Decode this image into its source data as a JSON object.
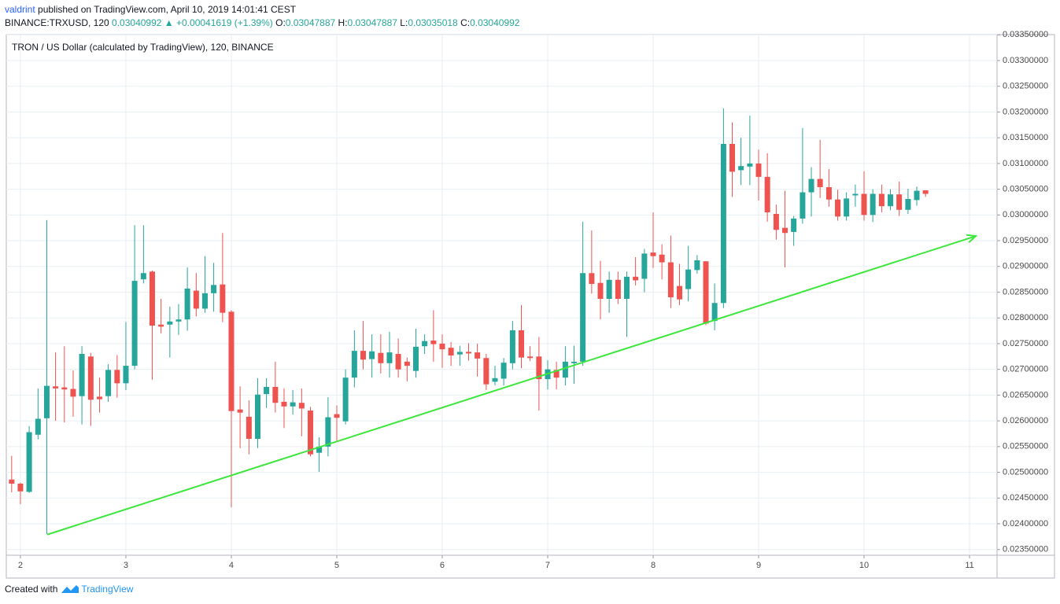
{
  "header": {
    "author": "valdrint",
    "published": "published on TradingView.com, April 10, 2019 14:01:41 CEST",
    "symbol": "BINANCE:TRXUSD, 120",
    "last": "0.03040992",
    "change": "▲ +0.00041619 (+1.39%)",
    "open_label": "O:",
    "open": "0.03047887",
    "high_label": "H:",
    "high": "0.03047887",
    "low_label": "L:",
    "low": "0.03035018",
    "close_label": "C:",
    "close": "0.03040992"
  },
  "footer": {
    "created": "Created with",
    "brand": "TradingView"
  },
  "chart_data": {
    "type": "candlestick",
    "title": "TRON / US Dollar (calculated by TradingView), 120, BINANCE",
    "up_color": "#26a69a",
    "down_color": "#ef5350",
    "grid": true,
    "xlim": [
      1.866,
      11.261
    ],
    "xticks": [
      2,
      3,
      4,
      5,
      6,
      7,
      8,
      9,
      10,
      11
    ],
    "ylim": [
      0.023389,
      0.033504
    ],
    "yticks": [
      {
        "value": 0.0235,
        "label": "0.02350000"
      },
      {
        "value": 0.024,
        "label": "0.02400000"
      },
      {
        "value": 0.0245,
        "label": "0.02450000"
      },
      {
        "value": 0.025,
        "label": "0.02500000"
      },
      {
        "value": 0.0255,
        "label": "0.02550000"
      },
      {
        "value": 0.026,
        "label": "0.02600000"
      },
      {
        "value": 0.0265,
        "label": "0.02650000"
      },
      {
        "value": 0.027,
        "label": "0.02700000"
      },
      {
        "value": 0.0275,
        "label": "0.02750000"
      },
      {
        "value": 0.028,
        "label": "0.02800000"
      },
      {
        "value": 0.0285,
        "label": "0.02850000"
      },
      {
        "value": 0.029,
        "label": "0.02900000"
      },
      {
        "value": 0.0295,
        "label": "0.02950000"
      },
      {
        "value": 0.03,
        "label": "0.03000000"
      },
      {
        "value": 0.0305,
        "label": "0.03050000"
      },
      {
        "value": 0.031,
        "label": "0.03100000"
      },
      {
        "value": 0.0315,
        "label": "0.03150000"
      },
      {
        "value": 0.032,
        "label": "0.03200000"
      },
      {
        "value": 0.0325,
        "label": "0.03250000"
      },
      {
        "value": 0.033,
        "label": "0.03300000"
      },
      {
        "value": 0.0335,
        "label": "0.03350000"
      }
    ],
    "x": [
      1.917,
      2,
      2.083,
      2.167,
      2.25,
      2.333,
      2.417,
      2.5,
      2.583,
      2.667,
      2.75,
      2.833,
      2.917,
      3,
      3.083,
      3.167,
      3.25,
      3.333,
      3.417,
      3.5,
      3.583,
      3.667,
      3.75,
      3.833,
      3.917,
      4,
      4.083,
      4.167,
      4.25,
      4.333,
      4.417,
      4.5,
      4.583,
      4.667,
      4.75,
      4.833,
      4.917,
      5,
      5.083,
      5.167,
      5.25,
      5.333,
      5.417,
      5.5,
      5.583,
      5.667,
      5.75,
      5.833,
      5.917,
      6,
      6.083,
      6.167,
      6.25,
      6.333,
      6.417,
      6.5,
      6.583,
      6.667,
      6.75,
      6.833,
      6.917,
      7,
      7.083,
      7.167,
      7.25,
      7.333,
      7.417,
      7.5,
      7.583,
      7.667,
      7.75,
      7.833,
      7.917,
      8,
      8.083,
      8.167,
      8.25,
      8.333,
      8.417,
      8.5,
      8.583,
      8.667,
      8.75,
      8.833,
      8.917,
      9,
      9.083,
      9.167,
      9.25,
      9.333,
      9.417,
      9.5,
      9.583,
      9.667,
      9.75,
      9.833,
      9.917,
      10,
      10.083,
      10.167,
      10.25,
      10.333,
      10.417,
      10.5,
      10.583
    ],
    "open": [
      0.02486,
      0.02478,
      0.02462,
      0.02573,
      0.02605,
      0.02667,
      0.02665,
      0.02662,
      0.02648,
      0.02725,
      0.02647,
      0.02648,
      0.02699,
      0.02673,
      0.02707,
      0.02875,
      0.0289,
      0.02787,
      0.02787,
      0.02793,
      0.02797,
      0.02853,
      0.02818,
      0.02848,
      0.02865,
      0.02812,
      0.02622,
      0.02608,
      0.02565,
      0.02652,
      0.02666,
      0.02637,
      0.02628,
      0.02635,
      0.0262,
      0.02538,
      0.0255,
      0.02613,
      0.02599,
      0.02684,
      0.02736,
      0.0272,
      0.02732,
      0.02712,
      0.0273,
      0.02715,
      0.02697,
      0.02745,
      0.02756,
      0.0275,
      0.02742,
      0.02729,
      0.02734,
      0.02733,
      0.02722,
      0.02676,
      0.02682,
      0.02712,
      0.02776,
      0.02725,
      0.02725,
      0.02681,
      0.02699,
      0.02684,
      0.02712,
      0.02715,
      0.02887,
      0.02868,
      0.02837,
      0.02874,
      0.02837,
      0.0288,
      0.02876,
      0.02927,
      0.02923,
      0.02908,
      0.02862,
      0.02856,
      0.02893,
      0.0291,
      0.02794,
      0.02829,
      0.03138,
      0.03087,
      0.03094,
      0.031,
      0.03074,
      0.03002,
      0.02975,
      0.02967,
      0.02993,
      0.03044,
      0.0307,
      0.03054,
      0.0303,
      0.02997,
      0.03038,
      0.03041,
      0.03,
      0.03041,
      0.03017,
      0.0304,
      0.0301,
      0.03029,
      0.03047887
    ],
    "high": [
      0.02532,
      0.0248,
      0.0259,
      0.02663,
      0.0299,
      0.02733,
      0.02745,
      0.02698,
      0.02745,
      0.02732,
      0.02684,
      0.0271,
      0.02728,
      0.02792,
      0.0298,
      0.0298,
      0.02892,
      0.02837,
      0.02822,
      0.02827,
      0.02898,
      0.02887,
      0.0292,
      0.02907,
      0.02965,
      0.02815,
      0.02667,
      0.0264,
      0.02683,
      0.02683,
      0.02715,
      0.02663,
      0.0266,
      0.02663,
      0.02627,
      0.02568,
      0.02646,
      0.0263,
      0.027,
      0.02776,
      0.02794,
      0.02768,
      0.02768,
      0.02773,
      0.0276,
      0.02723,
      0.02779,
      0.02768,
      0.02815,
      0.02768,
      0.02753,
      0.02746,
      0.02751,
      0.0275,
      0.0273,
      0.02707,
      0.02722,
      0.02794,
      0.02825,
      0.02745,
      0.02763,
      0.02718,
      0.02715,
      0.02745,
      0.02746,
      0.02987,
      0.0297,
      0.02911,
      0.0289,
      0.0289,
      0.0289,
      0.02918,
      0.02934,
      0.03005,
      0.02943,
      0.0296,
      0.02905,
      0.0294,
      0.02922,
      0.0291,
      0.02867,
      0.03207,
      0.0318,
      0.0315,
      0.03193,
      0.03127,
      0.0312,
      0.0302,
      0.03047,
      0.02998,
      0.03169,
      0.03093,
      0.03146,
      0.03089,
      0.03049,
      0.03044,
      0.03059,
      0.03085,
      0.0305,
      0.03059,
      0.0305,
      0.03065,
      0.03051,
      0.03055,
      0.03047887
    ],
    "low": [
      0.02461,
      0.02438,
      0.0246,
      0.02564,
      0.0238,
      0.026,
      0.02597,
      0.02608,
      0.02593,
      0.0259,
      0.02616,
      0.02637,
      0.02645,
      0.0266,
      0.027,
      0.02867,
      0.0268,
      0.0277,
      0.02723,
      0.02767,
      0.02775,
      0.02803,
      0.0281,
      0.02812,
      0.02792,
      0.02432,
      0.02547,
      0.02535,
      0.02547,
      0.02625,
      0.02616,
      0.02586,
      0.02612,
      0.0257,
      0.02531,
      0.02501,
      0.02531,
      0.0256,
      0.02593,
      0.02665,
      0.027,
      0.02684,
      0.02692,
      0.02684,
      0.02684,
      0.02677,
      0.02684,
      0.0273,
      0.02715,
      0.02703,
      0.02707,
      0.02707,
      0.02717,
      0.02686,
      0.0266,
      0.02669,
      0.02669,
      0.027,
      0.02702,
      0.02716,
      0.0262,
      0.02661,
      0.02661,
      0.02669,
      0.02672,
      0.02707,
      0.02847,
      0.02797,
      0.0281,
      0.02827,
      0.02763,
      0.02863,
      0.0285,
      0.02897,
      0.02875,
      0.02819,
      0.02825,
      0.02832,
      0.02886,
      0.02786,
      0.02776,
      0.02819,
      0.03035,
      0.03058,
      0.03058,
      0.03028,
      0.02987,
      0.02952,
      0.02898,
      0.0294,
      0.02983,
      0.02997,
      0.03033,
      0.03016,
      0.02989,
      0.02989,
      0.03016,
      0.02989,
      0.02986,
      0.03005,
      0.03009,
      0.02998,
      0.03002,
      0.03018,
      0.03035018
    ],
    "close": [
      0.02478,
      0.02463,
      0.02578,
      0.02604,
      0.02668,
      0.02663,
      0.02661,
      0.02647,
      0.0273,
      0.02641,
      0.02642,
      0.02699,
      0.02673,
      0.02707,
      0.02872,
      0.02887,
      0.02785,
      0.02783,
      0.02793,
      0.02797,
      0.02857,
      0.02818,
      0.02848,
      0.02864,
      0.0281,
      0.02619,
      0.02616,
      0.02565,
      0.02651,
      0.02666,
      0.02635,
      0.02628,
      0.02636,
      0.02624,
      0.02535,
      0.0255,
      0.02607,
      0.02606,
      0.02684,
      0.02736,
      0.02719,
      0.02735,
      0.02712,
      0.02733,
      0.027,
      0.02707,
      0.02744,
      0.02755,
      0.02749,
      0.02739,
      0.02727,
      0.02734,
      0.02731,
      0.02721,
      0.02671,
      0.02683,
      0.02713,
      0.02776,
      0.02723,
      0.02722,
      0.02681,
      0.027,
      0.02684,
      0.02715,
      0.02715,
      0.02887,
      0.02866,
      0.02837,
      0.02874,
      0.02837,
      0.0288,
      0.02873,
      0.02925,
      0.0292,
      0.02908,
      0.0284,
      0.02836,
      0.02894,
      0.02912,
      0.02789,
      0.02829,
      0.03138,
      0.03084,
      0.03095,
      0.031,
      0.03074,
      0.03005,
      0.02971,
      0.02965,
      0.02993,
      0.03044,
      0.0307,
      0.03054,
      0.0303,
      0.02997,
      0.03032,
      0.03041,
      0.03,
      0.03041,
      0.03017,
      0.0304,
      0.0301,
      0.03031,
      0.03047,
      0.03040992
    ],
    "trendline": {
      "x": [
        2.254,
        11.06
      ],
      "y": [
        0.02379,
        0.02959
      ],
      "color": "#3ce63c"
    }
  }
}
